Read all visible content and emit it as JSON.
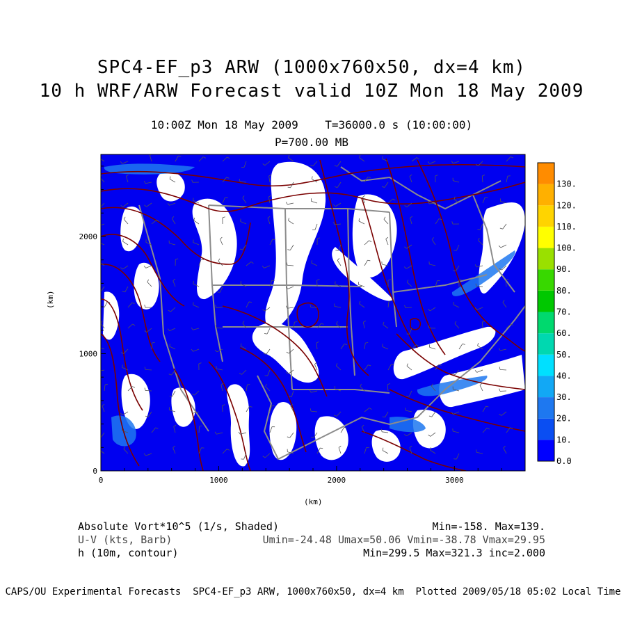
{
  "header": {
    "title_line1": "SPC4-EF_p3 ARW (1000x760x50, dx=4 km)",
    "title_line2": "10 h WRF/ARW Forecast valid 10Z Mon 18 May 2009",
    "valid_time": "10:00Z Mon 18 May 2009    T=36000.0 s (10:00:00)",
    "pressure_level": "P=700.00 MB"
  },
  "map": {
    "x_axis_label": "(km)",
    "y_axis_label": "(km)",
    "x_ticks": [
      "0",
      "1000",
      "2000",
      "3000"
    ],
    "y_ticks": [
      "0",
      "1000",
      "2000"
    ],
    "x_range_km": [
      0,
      3600
    ],
    "y_range_km": [
      0,
      2700
    ],
    "colors": {
      "shade": "#0000f0",
      "contour": "#7a0000",
      "borders": "#8c8c8c"
    }
  },
  "colorbar": {
    "labels": [
      "0.0",
      "10.",
      "20.",
      "30.",
      "40.",
      "50.",
      "60.",
      "70.",
      "80.",
      "90.",
      "100.",
      "110.",
      "120.",
      "130."
    ],
    "colors": [
      "#0000ff",
      "#0a4ef2",
      "#1e78f0",
      "#12a8f5",
      "#00e0ff",
      "#00d8b0",
      "#00d96e",
      "#00c800",
      "#38d800",
      "#9ae000",
      "#ffff00",
      "#ffd400",
      "#ffb000",
      "#ff8c00"
    ]
  },
  "legend": {
    "row1_left": "Absolute Vort*10^5 (1/s, Shaded)",
    "row1_right": "Min=-158. Max=139.",
    "row2_left": "U-V (kts, Barb)",
    "row2_right": "Umin=-24.48 Umax=50.06 Vmin=-38.78 Vmax=29.95",
    "row3_left": "h (10m, contour)",
    "row3_right": "Min=299.5 Max=321.3 inc=2.000"
  },
  "footer": "CAPS/OU Experimental Forecasts  SPC4-EF_p3 ARW, 1000x760x50, dx=4 km  Plotted 2009/05/18 05:02 Local Time"
}
